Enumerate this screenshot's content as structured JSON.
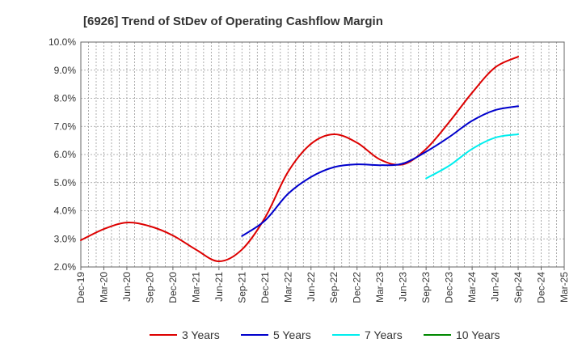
{
  "chart_data": {
    "type": "line",
    "title": "[6926]  Trend of StDev of Operating Cashflow Margin",
    "xlabel": "",
    "ylabel": "",
    "ylim": [
      2.0,
      10.0
    ],
    "yticks": [
      2.0,
      3.0,
      4.0,
      5.0,
      6.0,
      7.0,
      8.0,
      9.0,
      10.0
    ],
    "ytick_labels": [
      "2.0%",
      "3.0%",
      "4.0%",
      "5.0%",
      "6.0%",
      "7.0%",
      "8.0%",
      "9.0%",
      "10.0%"
    ],
    "x_labels": [
      "Dec-19",
      "Mar-20",
      "Jun-20",
      "Sep-20",
      "Dec-20",
      "Mar-21",
      "Jun-21",
      "Sep-21",
      "Dec-21",
      "Mar-22",
      "Jun-22",
      "Sep-22",
      "Dec-22",
      "Mar-23",
      "Jun-23",
      "Sep-23",
      "Dec-23",
      "Mar-24",
      "Jun-24",
      "Sep-24",
      "Dec-24",
      "Mar-25"
    ],
    "grid": true,
    "legend_position": "bottom",
    "series": [
      {
        "name": "3 Years",
        "color": "#dd0000",
        "start_index": 0,
        "values": [
          2.95,
          3.35,
          3.58,
          3.45,
          3.12,
          2.62,
          2.2,
          2.62,
          3.75,
          5.38,
          6.38,
          6.72,
          6.42,
          5.82,
          5.65,
          6.2,
          7.15,
          8.2,
          9.1,
          9.48
        ]
      },
      {
        "name": "5 Years",
        "color": "#0000cc",
        "start_index": 7,
        "values": [
          3.1,
          3.65,
          4.6,
          5.2,
          5.55,
          5.65,
          5.62,
          5.68,
          6.1,
          6.62,
          7.2,
          7.58,
          7.72
        ]
      },
      {
        "name": "7 Years",
        "color": "#00eeee",
        "start_index": 15,
        "values": [
          5.15,
          5.6,
          6.2,
          6.6,
          6.72
        ]
      },
      {
        "name": "10 Years",
        "color": "#008800",
        "start_index": 0,
        "values": []
      }
    ]
  }
}
